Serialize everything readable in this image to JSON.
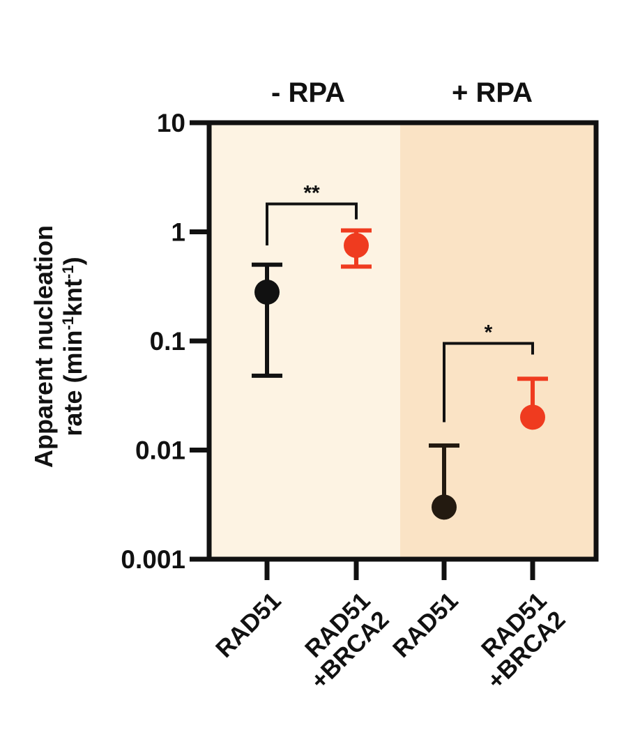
{
  "chart_data": {
    "type": "scatter",
    "yscale": "log",
    "ylim": [
      0.001,
      10
    ],
    "ylabel_line1": "Apparent nucleation",
    "ylabel_line2_main": "rate (min",
    "ylabel_line2_sup1": "-1",
    "ylabel_line2_mid": "knt",
    "ylabel_line2_sup2": "-1",
    "ylabel_line2_end": ")",
    "yticks": [
      {
        "value": 10,
        "label": "10"
      },
      {
        "value": 1,
        "label": "1"
      },
      {
        "value": 0.1,
        "label": "0.1"
      },
      {
        "value": 0.01,
        "label": "0.01"
      },
      {
        "value": 0.001,
        "label": "0.001"
      }
    ],
    "panels": [
      {
        "label": "- RPA",
        "color": "#fdf3e3"
      },
      {
        "label": "+ RPA",
        "color": "#fae3c5"
      }
    ],
    "categories": [
      {
        "line1": "RAD51",
        "line2": ""
      },
      {
        "line1": "RAD51",
        "line2": "+BRCA2"
      },
      {
        "line1": "RAD51",
        "line2": ""
      },
      {
        "line1": "RAD51",
        "line2": "+BRCA2"
      }
    ],
    "points": [
      {
        "category_index": 0,
        "value": 0.28,
        "err_low": 0.048,
        "err_high": 0.5,
        "color": "#111111"
      },
      {
        "category_index": 1,
        "value": 0.75,
        "err_low": 0.48,
        "err_high": 1.03,
        "color": "#ef3b1f"
      },
      {
        "category_index": 2,
        "value": 0.003,
        "err_low": 0.003,
        "err_high": 0.011,
        "color": "#231a10"
      },
      {
        "category_index": 3,
        "value": 0.02,
        "err_low": 0.02,
        "err_high": 0.045,
        "color": "#ef3b1f"
      }
    ],
    "significance": [
      {
        "from_index": 0,
        "to_index": 1,
        "label": "**",
        "y": 1.8,
        "from_end": 0.75,
        "to_end": 1.3
      },
      {
        "from_index": 2,
        "to_index": 3,
        "label": "*",
        "y": 0.095,
        "from_end": 0.018,
        "to_end": 0.075
      }
    ]
  }
}
